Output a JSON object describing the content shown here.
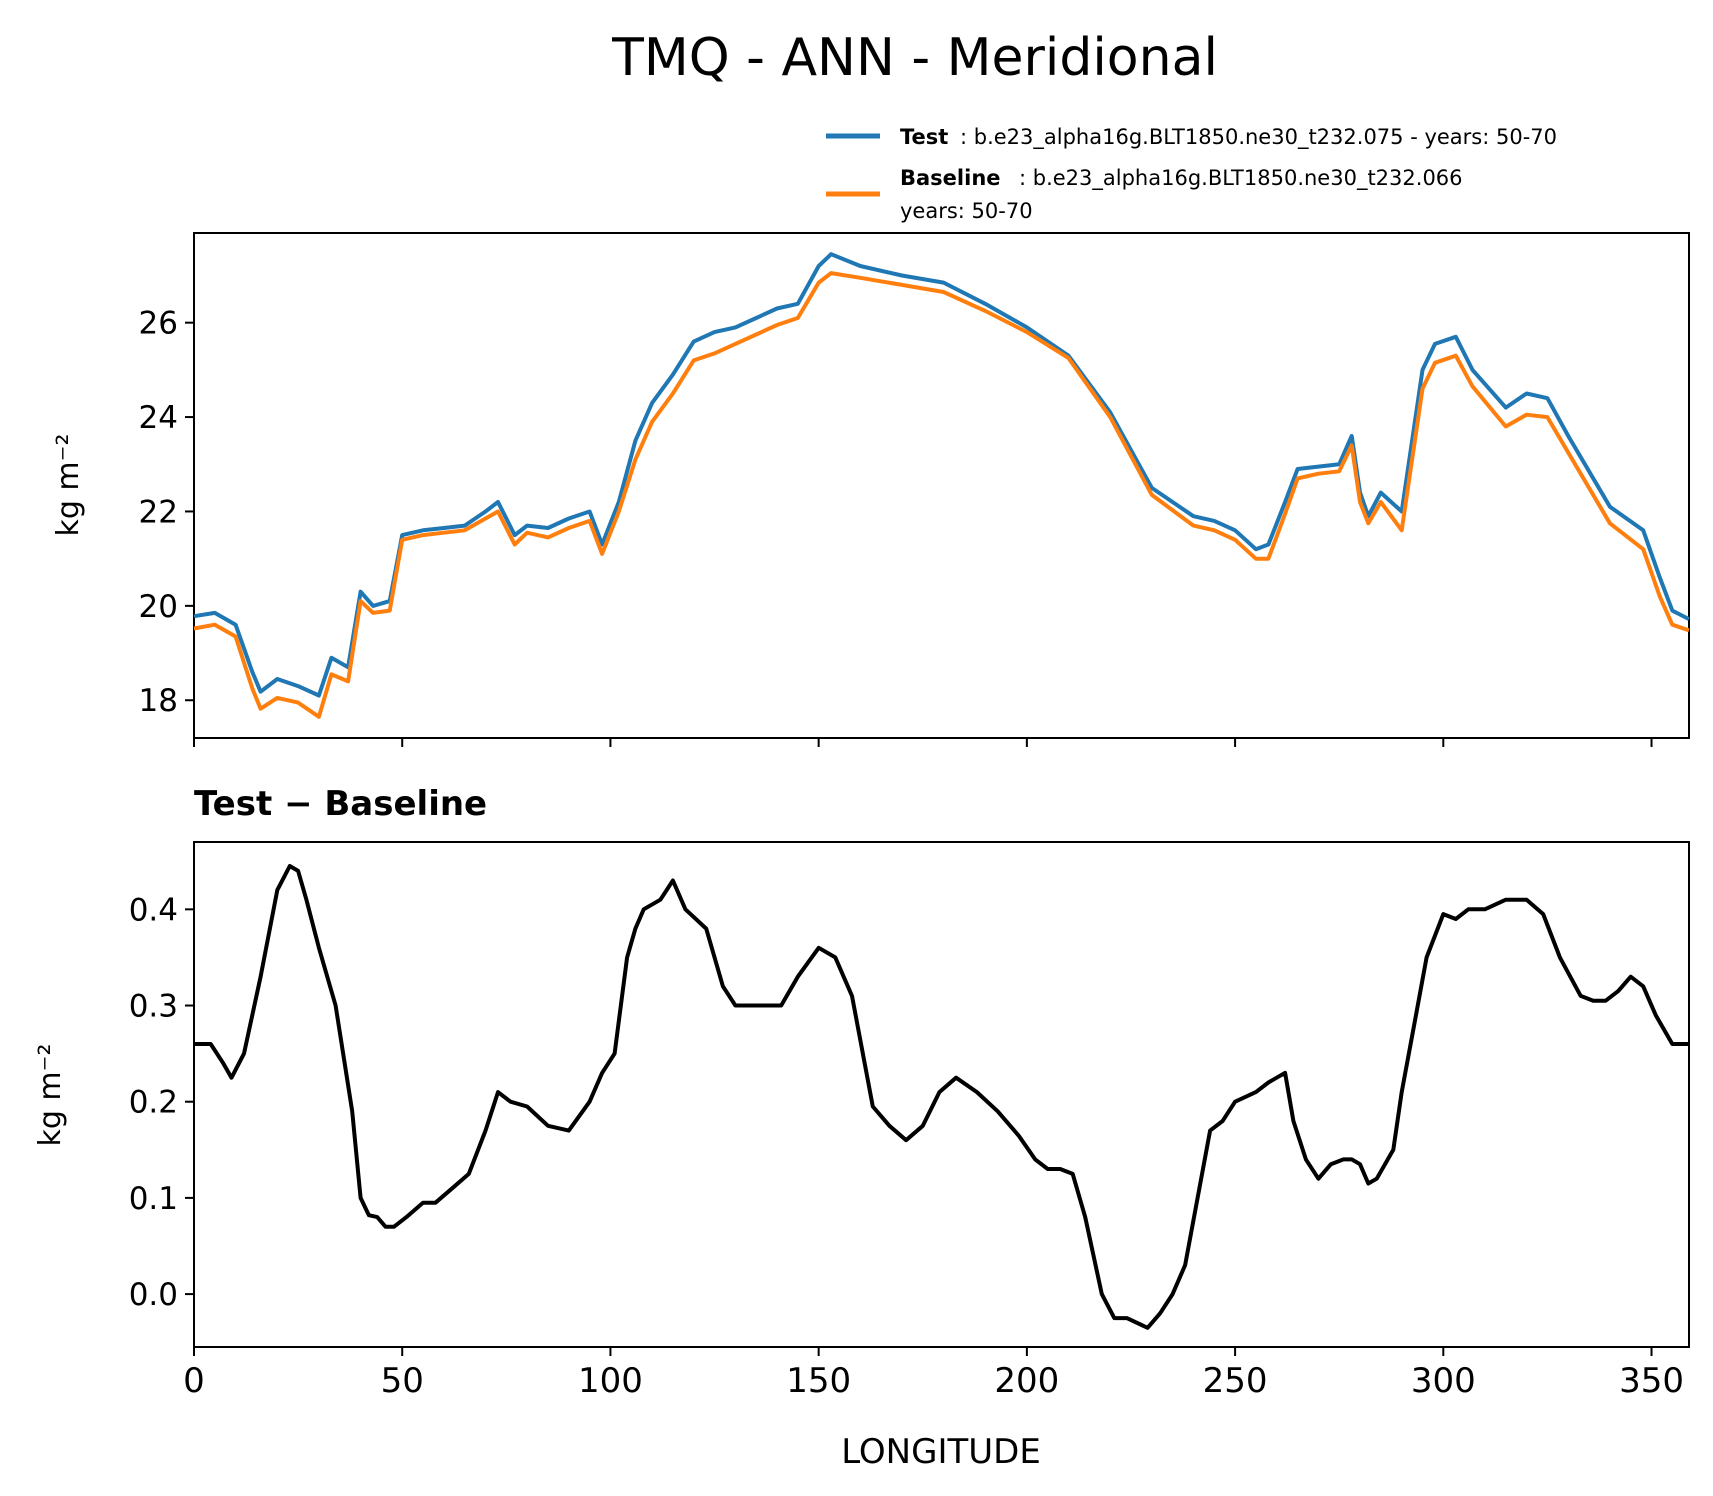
{
  "title": "TMQ - ANN - Meridional",
  "colors": {
    "test": "#1f77b4",
    "baseline": "#ff7f0e",
    "diff": "#000000"
  },
  "legend": {
    "test_label": "Test",
    "test_text": ": b.e23_alpha16g.BLT1850.ne30_t232.075 - years: 50-70",
    "baseline_label": "Baseline",
    "baseline_text_1": ": b.e23_alpha16g.BLT1850.ne30_t232.066",
    "baseline_text_2": "years: 50-70"
  },
  "chart_data": [
    {
      "type": "line",
      "title": "",
      "xlabel": "",
      "ylabel": "kg m⁻²",
      "xlim": [
        0,
        359
      ],
      "ylim": [
        17.2,
        27.9
      ],
      "yticks": [
        "18",
        "20",
        "22",
        "24",
        "26"
      ],
      "legend_position": "top-right (outside, above plot)",
      "x": [
        0,
        5,
        10,
        14,
        16,
        20,
        25,
        30,
        33,
        37,
        40,
        43,
        47,
        50,
        55,
        60,
        65,
        70,
        73,
        77,
        80,
        85,
        90,
        95,
        98,
        102,
        106,
        110,
        115,
        120,
        125,
        130,
        135,
        140,
        145,
        150,
        153,
        160,
        170,
        180,
        190,
        200,
        210,
        220,
        230,
        240,
        245,
        250,
        255,
        258,
        262,
        265,
        270,
        275,
        278,
        280,
        282,
        285,
        290,
        295,
        298,
        303,
        307,
        315,
        320,
        325,
        330,
        340,
        348,
        352,
        355,
        359
      ],
      "series": [
        {
          "name": "Test",
          "values": [
            19.78,
            19.85,
            19.6,
            18.6,
            18.18,
            18.45,
            18.3,
            18.1,
            18.9,
            18.7,
            20.3,
            20.0,
            20.1,
            21.5,
            21.6,
            21.65,
            21.7,
            22.0,
            22.2,
            21.5,
            21.7,
            21.65,
            21.85,
            22.0,
            21.3,
            22.2,
            23.5,
            24.3,
            24.9,
            25.6,
            25.8,
            25.9,
            26.1,
            26.3,
            26.4,
            27.2,
            27.45,
            27.2,
            27.0,
            26.85,
            26.4,
            25.9,
            25.3,
            24.1,
            22.5,
            21.9,
            21.8,
            21.6,
            21.2,
            21.3,
            22.2,
            22.9,
            22.95,
            23.0,
            23.6,
            22.4,
            21.9,
            22.4,
            22.0,
            25.0,
            25.55,
            25.7,
            25.0,
            24.2,
            24.5,
            24.4,
            23.6,
            22.1,
            21.6,
            20.6,
            19.9,
            19.72
          ]
        },
        {
          "name": "Baseline",
          "values": [
            19.52,
            19.6,
            19.35,
            18.25,
            17.82,
            18.05,
            17.95,
            17.65,
            18.55,
            18.4,
            20.1,
            19.85,
            19.9,
            21.4,
            21.5,
            21.55,
            21.6,
            21.85,
            22.0,
            21.3,
            21.55,
            21.45,
            21.65,
            21.8,
            21.1,
            22.0,
            23.1,
            23.9,
            24.5,
            25.2,
            25.35,
            25.55,
            25.75,
            25.95,
            26.1,
            26.85,
            27.05,
            26.95,
            26.8,
            26.65,
            26.25,
            25.8,
            25.25,
            24.0,
            22.35,
            21.7,
            21.6,
            21.4,
            21.0,
            21.0,
            21.95,
            22.7,
            22.8,
            22.85,
            23.4,
            22.2,
            21.75,
            22.2,
            21.6,
            24.6,
            25.15,
            25.3,
            24.65,
            23.8,
            24.05,
            24.0,
            23.25,
            21.75,
            21.2,
            20.2,
            19.6,
            19.48
          ]
        }
      ]
    },
    {
      "type": "line",
      "title": "Test − Baseline",
      "xlabel": "LONGITUDE",
      "ylabel": "kg m⁻²",
      "xlim": [
        0,
        359
      ],
      "ylim": [
        -0.055,
        0.47
      ],
      "yticks": [
        "0.0",
        "0.1",
        "0.2",
        "0.3",
        "0.4"
      ],
      "xticks": [
        "0",
        "50",
        "100",
        "150",
        "200",
        "250",
        "300",
        "350"
      ],
      "x": [
        0,
        4,
        7,
        9,
        12,
        16,
        20,
        23,
        25,
        27,
        30,
        34,
        38,
        40,
        42,
        44,
        46,
        48,
        51,
        55,
        58,
        62,
        66,
        70,
        73,
        76,
        80,
        85,
        90,
        95,
        98,
        101,
        104,
        106,
        108,
        112,
        115,
        118,
        123,
        127,
        130,
        133,
        137,
        141,
        145,
        150,
        154,
        158,
        163,
        167,
        171,
        175,
        179,
        183,
        188,
        193,
        198,
        202,
        205,
        208,
        211,
        214,
        216,
        218,
        221,
        224,
        229,
        232,
        235,
        238,
        241,
        244,
        247,
        250,
        255,
        258,
        260,
        262,
        264,
        267,
        270,
        273,
        276,
        278,
        280,
        282,
        284,
        288,
        290,
        293,
        296,
        300,
        303,
        306,
        310,
        315,
        320,
        324,
        328,
        333,
        336,
        339,
        342,
        345,
        348,
        351,
        355,
        359
      ],
      "series": [
        {
          "name": "Test − Baseline",
          "values": [
            0.26,
            0.26,
            0.24,
            0.225,
            0.25,
            0.33,
            0.42,
            0.445,
            0.44,
            0.41,
            0.36,
            0.3,
            0.19,
            0.1,
            0.082,
            0.08,
            0.07,
            0.07,
            0.08,
            0.095,
            0.095,
            0.11,
            0.125,
            0.17,
            0.21,
            0.2,
            0.195,
            0.175,
            0.17,
            0.2,
            0.23,
            0.25,
            0.35,
            0.38,
            0.4,
            0.41,
            0.43,
            0.4,
            0.38,
            0.32,
            0.3,
            0.3,
            0.3,
            0.3,
            0.33,
            0.36,
            0.35,
            0.31,
            0.195,
            0.175,
            0.16,
            0.175,
            0.21,
            0.225,
            0.21,
            0.19,
            0.165,
            0.14,
            0.13,
            0.13,
            0.125,
            0.08,
            0.04,
            0.0,
            -0.025,
            -0.025,
            -0.035,
            -0.02,
            0.0,
            0.03,
            0.1,
            0.17,
            0.18,
            0.2,
            0.21,
            0.22,
            0.225,
            0.23,
            0.18,
            0.14,
            0.12,
            0.135,
            0.14,
            0.14,
            0.135,
            0.115,
            0.12,
            0.15,
            0.21,
            0.28,
            0.35,
            0.395,
            0.39,
            0.4,
            0.4,
            0.41,
            0.41,
            0.395,
            0.35,
            0.31,
            0.305,
            0.305,
            0.315,
            0.33,
            0.32,
            0.29,
            0.26,
            0.26
          ]
        }
      ]
    }
  ]
}
